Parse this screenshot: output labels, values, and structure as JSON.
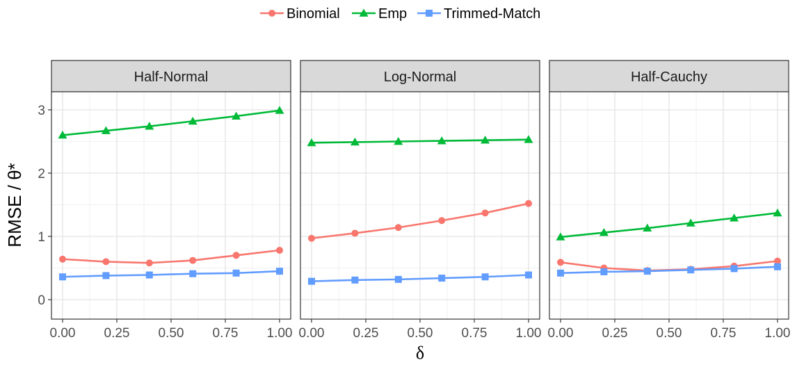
{
  "chart_data": {
    "type": "line",
    "xlabel": "δ",
    "ylabel": "RMSE / θ*",
    "x": [
      0.0,
      0.2,
      0.4,
      0.6,
      0.8,
      1.0
    ],
    "xlim": [
      0,
      1
    ],
    "ylim": [
      0,
      3
    ],
    "x_ticks": [
      0.0,
      0.25,
      0.5,
      0.75,
      1.0
    ],
    "x_tick_labels": [
      "0.00",
      "0.25",
      "0.50",
      "0.75",
      "1.00"
    ],
    "y_ticks": [
      0,
      1,
      2,
      3
    ],
    "y_tick_labels": [
      "0",
      "1",
      "2",
      "3"
    ],
    "grid": true,
    "legend_position": "top",
    "legend": [
      {
        "name": "Binomial",
        "color": "#F8766D",
        "marker": "circle"
      },
      {
        "name": "Emp",
        "color": "#00BA38",
        "marker": "triangle"
      },
      {
        "name": "Trimmed-Match",
        "color": "#619CFF",
        "marker": "square"
      }
    ],
    "panels": [
      {
        "title": "Half-Normal",
        "series": [
          {
            "name": "Binomial",
            "values": [
              0.64,
              0.6,
              0.58,
              0.62,
              0.7,
              0.78
            ]
          },
          {
            "name": "Emp",
            "values": [
              2.6,
              2.67,
              2.74,
              2.82,
              2.9,
              2.99
            ]
          },
          {
            "name": "Trimmed-Match",
            "values": [
              0.36,
              0.38,
              0.39,
              0.41,
              0.42,
              0.45
            ]
          }
        ]
      },
      {
        "title": "Log-Normal",
        "series": [
          {
            "name": "Binomial",
            "values": [
              0.97,
              1.05,
              1.14,
              1.25,
              1.37,
              1.52
            ]
          },
          {
            "name": "Emp",
            "values": [
              2.48,
              2.49,
              2.5,
              2.51,
              2.52,
              2.53
            ]
          },
          {
            "name": "Trimmed-Match",
            "values": [
              0.29,
              0.31,
              0.32,
              0.34,
              0.36,
              0.39
            ]
          }
        ]
      },
      {
        "title": "Half-Cauchy",
        "series": [
          {
            "name": "Binomial",
            "values": [
              0.59,
              0.5,
              0.46,
              0.48,
              0.53,
              0.61
            ]
          },
          {
            "name": "Emp",
            "values": [
              0.99,
              1.06,
              1.13,
              1.21,
              1.29,
              1.37
            ]
          },
          {
            "name": "Trimmed-Match",
            "values": [
              0.42,
              0.44,
              0.45,
              0.47,
              0.49,
              0.52
            ]
          }
        ]
      }
    ]
  }
}
